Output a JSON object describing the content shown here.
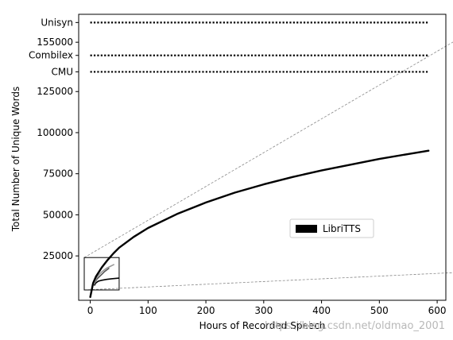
{
  "chart_data": {
    "type": "line",
    "xlabel": "Hours of Recorded Speech",
    "ylabel": "Total Number of Unique Words",
    "xlim": [
      -20,
      615
    ],
    "ylim": [
      -2000,
      172000
    ],
    "xticks": [
      0,
      100,
      200,
      300,
      400,
      500,
      600
    ],
    "yticks": [
      25000,
      50000,
      75000,
      100000,
      125000,
      155000
    ],
    "series": [
      {
        "name": "LibriTTS",
        "color": "#000000",
        "style": "solid",
        "x": [
          0,
          5,
          10,
          20,
          30,
          40,
          50,
          75,
          100,
          150,
          200,
          250,
          300,
          350,
          400,
          450,
          500,
          550,
          585
        ],
        "y": [
          0,
          8500,
          12500,
          18000,
          22500,
          26500,
          30000,
          36500,
          42000,
          50500,
          57500,
          63500,
          68500,
          73000,
          77000,
          80500,
          84000,
          87000,
          89000
        ]
      }
    ],
    "reference_lines": [
      {
        "name": "Unisyn",
        "y": 167000,
        "x": [
          0,
          585
        ],
        "style": "dotted",
        "color": "#000000"
      },
      {
        "name": "Combilex",
        "y": 147000,
        "x": [
          0,
          585
        ],
        "style": "dotted",
        "color": "#000000"
      },
      {
        "name": "CMU",
        "y": 137000,
        "x": [
          0,
          585
        ],
        "style": "dotted",
        "color": "#000000"
      }
    ],
    "inset": {
      "x_range": [
        -20,
        50
      ],
      "y_range": [
        -2000,
        24000
      ],
      "curves": [
        {
          "color": "#000000",
          "x": [
            0,
            3,
            8,
            15,
            25,
            35,
            50
          ],
          "y": [
            1500,
            3500,
            5000,
            5800,
            6500,
            7000,
            7500
          ]
        },
        {
          "color": "#555555",
          "x": [
            0,
            5,
            10,
            15,
            20,
            25,
            30
          ],
          "y": [
            3000,
            6500,
            8500,
            10500,
            12500,
            14000,
            15500
          ]
        },
        {
          "color": "#999999",
          "x": [
            0,
            5,
            10,
            15,
            20,
            25,
            30,
            35,
            40
          ],
          "y": [
            3000,
            8000,
            10500,
            12500,
            14000,
            15500,
            16500,
            17500,
            18500
          ]
        }
      ]
    },
    "legend": {
      "entries": [
        "LibriTTS"
      ],
      "position": "center-right"
    },
    "grid": false
  },
  "watermark": "https://blog.csdn.net/oldmao_2001"
}
